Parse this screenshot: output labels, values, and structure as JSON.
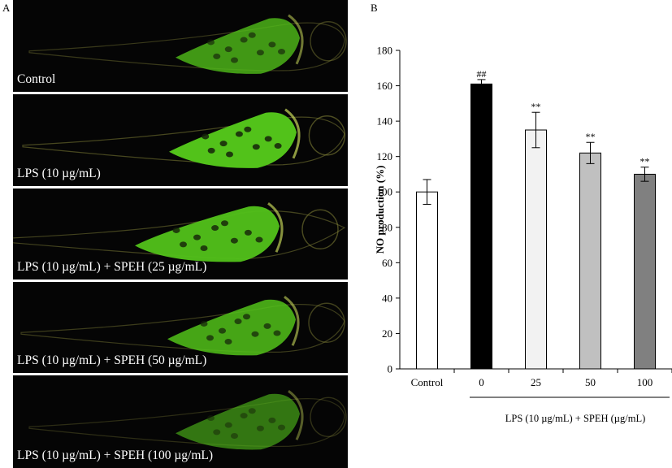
{
  "panel_a": {
    "letter": "A",
    "images": [
      {
        "label": "Control",
        "brightness": 0.78
      },
      {
        "label": "LPS (10 µg/mL)",
        "brightness": 1.0
      },
      {
        "label": "LPS (10 µg/mL) + SPEH (25 µg/mL)",
        "brightness": 0.95
      },
      {
        "label": "LPS (10 µg/mL) + SPEH (50 µg/mL)",
        "brightness": 0.85
      },
      {
        "label": "LPS (10 µg/mL) + SPEH (100 µg/mL)",
        "brightness": 0.6
      }
    ],
    "colors": {
      "background": "#050505",
      "fluorescence": "#52c21a",
      "outline": "#8a8a3a"
    }
  },
  "chart_data": {
    "panel_letter": "B",
    "type": "bar",
    "ylabel": "NO production (%)",
    "ylim": [
      0,
      180
    ],
    "yticks": [
      0,
      20,
      40,
      60,
      80,
      100,
      120,
      140,
      160,
      180
    ],
    "categories": [
      "Control",
      "0",
      "25",
      "50",
      "100"
    ],
    "values": [
      100,
      161,
      135,
      122,
      110
    ],
    "errors": [
      7,
      2.5,
      10,
      6,
      4
    ],
    "annotations": [
      "",
      "##",
      "**",
      "**",
      "**"
    ],
    "bar_colors": [
      "#ffffff",
      "#000000",
      "#f2f2f2",
      "#c0c0c0",
      "#808080"
    ],
    "group_label": "LPS (10 µg/mL) + SPEH (µg/mL)"
  }
}
